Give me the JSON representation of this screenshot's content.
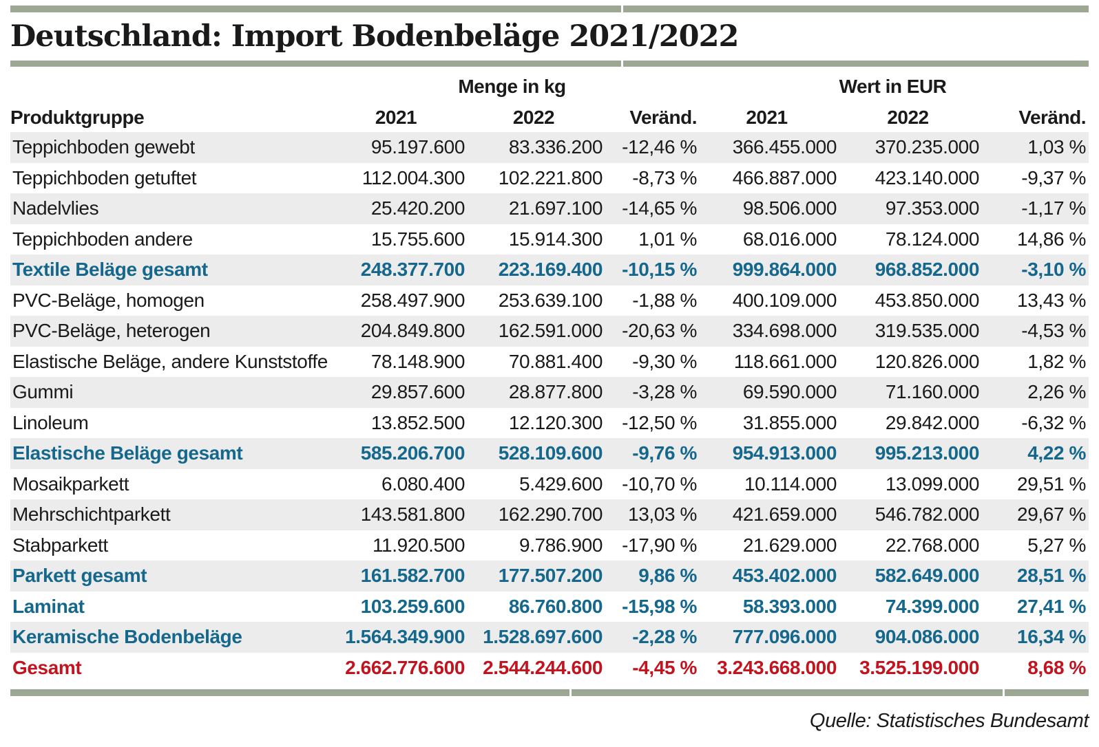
{
  "title": "Deutschland: Import Bodenbeläge 2021/2022",
  "columns": {
    "product": "Produktgruppe",
    "group_kg": "Menge in kg",
    "group_eur": "Wert in EUR",
    "year_a": "2021",
    "year_b": "2022",
    "change": "Veränd."
  },
  "source": "Quelle: Statistisches Bundesamt",
  "colors": {
    "subtotal_teal": "#15688c",
    "total_red": "#c2141f",
    "stripe_gray": "#ececec",
    "rule_sage": "#9ca794",
    "text_black": "#1a1a1a"
  },
  "chart_data": {
    "type": "table",
    "title": "Deutschland: Import Bodenbeläge 2021/2022",
    "column_groups": [
      "Menge in kg",
      "Wert in EUR"
    ],
    "columns": [
      "Produktgruppe",
      "Menge in kg 2021",
      "Menge in kg 2022",
      "Menge Veränd.",
      "Wert in EUR 2021",
      "Wert in EUR 2022",
      "Wert Veränd."
    ],
    "rows": [
      {
        "label": "Teppichboden gewebt",
        "style": "normal",
        "values": [
          "95.197.600",
          "83.336.200",
          "-12,46 %",
          "366.455.000",
          "370.235.000",
          "1,03 %"
        ]
      },
      {
        "label": "Teppichboden getuftet",
        "style": "normal",
        "values": [
          "112.004.300",
          "102.221.800",
          "-8,73 %",
          "466.887.000",
          "423.140.000",
          "-9,37 %"
        ]
      },
      {
        "label": "Nadelvlies",
        "style": "normal",
        "values": [
          "25.420.200",
          "21.697.100",
          "-14,65 %",
          "98.506.000",
          "97.353.000",
          "-1,17 %"
        ]
      },
      {
        "label": "Teppichboden andere",
        "style": "normal",
        "values": [
          "15.755.600",
          "15.914.300",
          "1,01 %",
          "68.016.000",
          "78.124.000",
          "14,86 %"
        ]
      },
      {
        "label": "Textile Beläge gesamt",
        "style": "subtotal",
        "values": [
          "248.377.700",
          "223.169.400",
          "-10,15 %",
          "999.864.000",
          "968.852.000",
          "-3,10 %"
        ]
      },
      {
        "label": "PVC-Beläge, homogen",
        "style": "normal",
        "values": [
          "258.497.900",
          "253.639.100",
          "-1,88 %",
          "400.109.000",
          "453.850.000",
          "13,43 %"
        ]
      },
      {
        "label": "PVC-Beläge, heterogen",
        "style": "normal",
        "values": [
          "204.849.800",
          "162.591.000",
          "-20,63 %",
          "334.698.000",
          "319.535.000",
          "-4,53 %"
        ]
      },
      {
        "label": "Elastische Beläge, andere Kunststoffe",
        "style": "normal",
        "values": [
          "78.148.900",
          "70.881.400",
          "-9,30 %",
          "118.661.000",
          "120.826.000",
          "1,82 %"
        ]
      },
      {
        "label": "Gummi",
        "style": "normal",
        "values": [
          "29.857.600",
          "28.877.800",
          "-3,28 %",
          "69.590.000",
          "71.160.000",
          "2,26 %"
        ]
      },
      {
        "label": "Linoleum",
        "style": "normal",
        "values": [
          "13.852.500",
          "12.120.300",
          "-12,50 %",
          "31.855.000",
          "29.842.000",
          "-6,32 %"
        ]
      },
      {
        "label": "Elastische Beläge gesamt",
        "style": "subtotal",
        "values": [
          "585.206.700",
          "528.109.600",
          "-9,76 %",
          "954.913.000",
          "995.213.000",
          "4,22 %"
        ]
      },
      {
        "label": "Mosaikparkett",
        "style": "normal",
        "values": [
          "6.080.400",
          "5.429.600",
          "-10,70 %",
          "10.114.000",
          "13.099.000",
          "29,51 %"
        ]
      },
      {
        "label": "Mehrschichtparkett",
        "style": "normal",
        "values": [
          "143.581.800",
          "162.290.700",
          "13,03 %",
          "421.659.000",
          "546.782.000",
          "29,67 %"
        ]
      },
      {
        "label": "Stabparkett",
        "style": "normal",
        "values": [
          "11.920.500",
          "9.786.900",
          "-17,90 %",
          "21.629.000",
          "22.768.000",
          "5,27 %"
        ]
      },
      {
        "label": "Parkett gesamt",
        "style": "subtotal",
        "values": [
          "161.582.700",
          "177.507.200",
          "9,86 %",
          "453.402.000",
          "582.649.000",
          "28,51 %"
        ]
      },
      {
        "label": "Laminat",
        "style": "subtotal",
        "values": [
          "103.259.600",
          "86.760.800",
          "-15,98 %",
          "58.393.000",
          "74.399.000",
          "27,41 %"
        ]
      },
      {
        "label": "Keramische Bodenbeläge",
        "style": "subtotal",
        "values": [
          "1.564.349.900",
          "1.528.697.600",
          "-2,28 %",
          "777.096.000",
          "904.086.000",
          "16,34 %"
        ]
      },
      {
        "label": "Gesamt",
        "style": "total",
        "values": [
          "2.662.776.600",
          "2.544.244.600",
          "-4,45 %",
          "3.243.668.000",
          "3.525.199.000",
          "8,68 %"
        ]
      }
    ]
  }
}
